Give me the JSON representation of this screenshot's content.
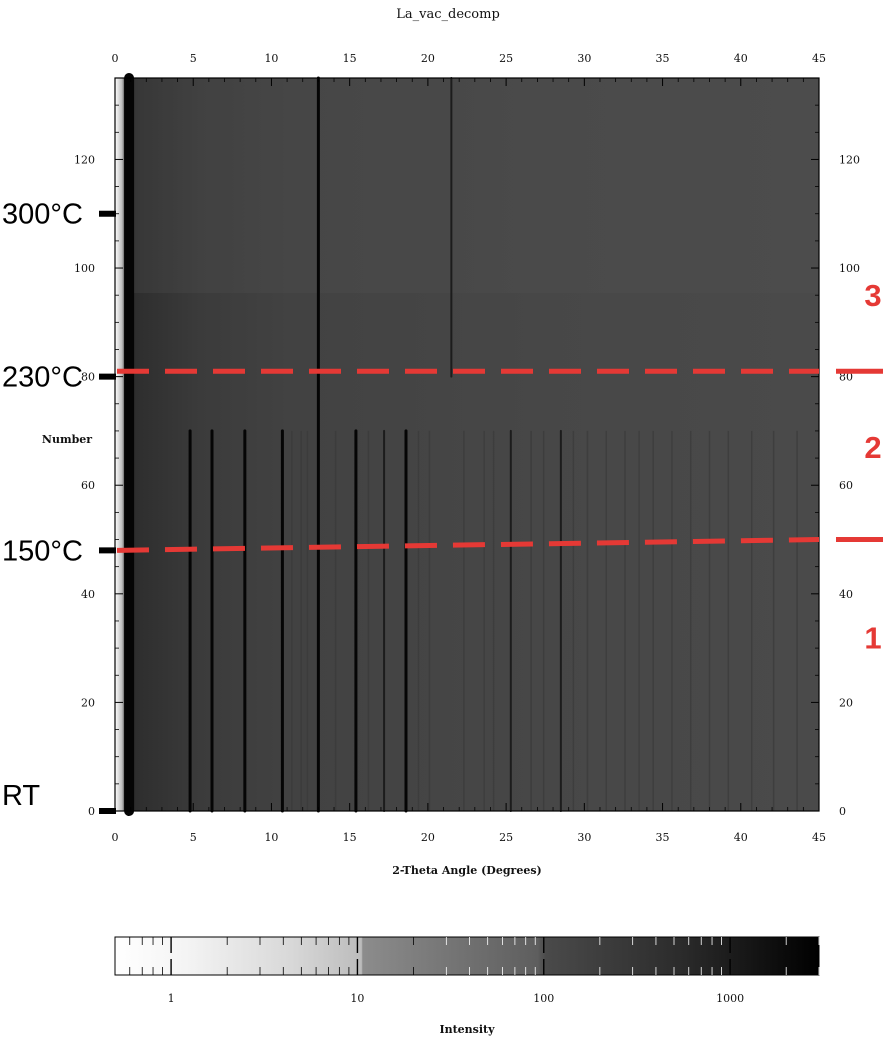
{
  "chart_data": {
    "type": "heatmap",
    "title": "La_vac_decomp",
    "xlabel": "2-Theta Angle (Degrees)",
    "ylabel": "Number",
    "xlim": [
      0,
      45
    ],
    "ylim": [
      0,
      135
    ],
    "x_ticks": [
      "0",
      "5",
      "10",
      "15",
      "20",
      "25",
      "30",
      "35",
      "40",
      "45"
    ],
    "y_ticks": [
      "0",
      "20",
      "40",
      "60",
      "80",
      "100",
      "120"
    ],
    "colormap": "grayscale (white = low, black = high intensity)",
    "colorbar": {
      "label": "Intensity",
      "scale": "log",
      "range": [
        0.5,
        3000
      ],
      "ticks": [
        "1",
        "10",
        "100",
        "1000"
      ]
    },
    "temperature_markers": [
      {
        "label": "RT",
        "number": 0
      },
      {
        "label": "150°C",
        "number": 48
      },
      {
        "label": "230°C",
        "number": 80
      },
      {
        "label": "300°C",
        "number": 110
      }
    ],
    "region_boundaries": [
      {
        "number_left": 48,
        "number_right": 50
      },
      {
        "number_left": 81,
        "number_right": 81
      }
    ],
    "regions": [
      {
        "label": "1",
        "number": 32
      },
      {
        "label": "2",
        "number": 67
      },
      {
        "label": "3",
        "number": 95
      }
    ],
    "peaks": [
      {
        "two_theta": 0.9,
        "intensity": "very strong",
        "numbers": [
          0,
          135
        ]
      },
      {
        "two_theta": 4.8,
        "intensity": "strong",
        "numbers": [
          0,
          70
        ]
      },
      {
        "two_theta": 6.2,
        "intensity": "strong",
        "numbers": [
          0,
          70
        ]
      },
      {
        "two_theta": 8.3,
        "intensity": "strong",
        "numbers": [
          0,
          70
        ]
      },
      {
        "two_theta": 10.7,
        "intensity": "strong",
        "numbers": [
          0,
          70
        ]
      },
      {
        "two_theta": 13.0,
        "intensity": "strong",
        "numbers": [
          0,
          135
        ]
      },
      {
        "two_theta": 15.4,
        "intensity": "strong",
        "numbers": [
          0,
          70
        ]
      },
      {
        "two_theta": 17.2,
        "intensity": "medium",
        "numbers": [
          0,
          70
        ]
      },
      {
        "two_theta": 18.6,
        "intensity": "strong",
        "numbers": [
          0,
          70
        ]
      },
      {
        "two_theta": 21.5,
        "intensity": "medium",
        "numbers": [
          80,
          135
        ]
      },
      {
        "two_theta": 25.3,
        "intensity": "medium",
        "numbers": [
          0,
          70
        ]
      },
      {
        "two_theta": 28.5,
        "intensity": "medium",
        "numbers": [
          0,
          70
        ]
      }
    ]
  }
}
